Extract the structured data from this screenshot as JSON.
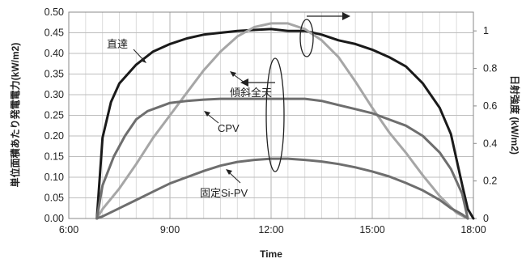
{
  "chart_data": {
    "type": "line",
    "title": "",
    "xlabel": "Time",
    "ylabel_left": "単位面積あたり発電電力(kW/m2)",
    "ylabel_right": "日射強度 (kW/m2)",
    "x_ticks": [
      "6:00",
      "9:00",
      "12:00",
      "15:00",
      "18:00"
    ],
    "xlim": [
      "6:00",
      "18:00"
    ],
    "ylim_left": [
      0,
      0.5
    ],
    "ylim_right": [
      0,
      1.1
    ],
    "y_ticks_left": [
      "0.00",
      "0.05",
      "0.10",
      "0.15",
      "0.20",
      "0.25",
      "0.30",
      "0.35",
      "0.40",
      "0.45",
      "0.50"
    ],
    "y_ticks_right": [
      "0",
      "0.2",
      "0.4",
      "0.6",
      "0.8",
      "1"
    ],
    "grid": true,
    "legend": "none",
    "series": [
      {
        "name": "直達",
        "axis": "right",
        "color": "#1a1a1a",
        "x": [
          "6:50",
          "7:00",
          "7:15",
          "7:30",
          "8:00",
          "8:30",
          "9:00",
          "9:30",
          "10:00",
          "10:30",
          "11:00",
          "11:30",
          "12:00",
          "12:30",
          "13:00",
          "13:30",
          "14:00",
          "14:30",
          "15:00",
          "15:30",
          "16:00",
          "16:30",
          "17:00",
          "17:20",
          "17:40",
          "17:50",
          "18:00"
        ],
        "values": [
          0,
          0.43,
          0.62,
          0.72,
          0.82,
          0.89,
          0.93,
          0.96,
          0.98,
          0.99,
          1.0,
          1.005,
          1.01,
          1.0,
          1.0,
          0.98,
          0.95,
          0.93,
          0.9,
          0.86,
          0.81,
          0.72,
          0.59,
          0.45,
          0.18,
          0.05,
          0
        ]
      },
      {
        "name": "傾斜全天",
        "axis": "right",
        "color": "#a6a6a6",
        "x": [
          "6:50",
          "7:00",
          "7:30",
          "8:00",
          "8:30",
          "9:00",
          "9:30",
          "10:00",
          "10:30",
          "11:00",
          "11:30",
          "12:00",
          "12:30",
          "13:00",
          "13:30",
          "14:00",
          "14:30",
          "15:00",
          "15:30",
          "16:00",
          "16:30",
          "17:00",
          "17:30",
          "17:50"
        ],
        "values": [
          0,
          0.05,
          0.16,
          0.29,
          0.43,
          0.55,
          0.67,
          0.79,
          0.89,
          0.97,
          1.02,
          1.04,
          1.04,
          1.01,
          0.95,
          0.86,
          0.73,
          0.59,
          0.46,
          0.35,
          0.23,
          0.12,
          0.03,
          0
        ]
      },
      {
        "name": "CPV",
        "axis": "left",
        "color": "#6e6e6e",
        "x": [
          "6:50",
          "7:00",
          "7:20",
          "7:40",
          "8:00",
          "8:20",
          "8:40",
          "9:00",
          "9:30",
          "10:00",
          "10:30",
          "11:00",
          "11:30",
          "12:00",
          "12:30",
          "13:00",
          "13:30",
          "14:00",
          "14:30",
          "15:00",
          "15:30",
          "16:00",
          "16:30",
          "17:00",
          "17:20",
          "17:40",
          "17:50"
        ],
        "values": [
          0,
          0.08,
          0.15,
          0.2,
          0.24,
          0.26,
          0.27,
          0.28,
          0.285,
          0.288,
          0.29,
          0.29,
          0.29,
          0.29,
          0.29,
          0.29,
          0.285,
          0.275,
          0.265,
          0.255,
          0.24,
          0.225,
          0.2,
          0.16,
          0.12,
          0.06,
          0
        ]
      },
      {
        "name": "固定Si-PV",
        "axis": "left",
        "color": "#6e6e6e",
        "x": [
          "6:50",
          "7:00",
          "7:30",
          "8:00",
          "8:30",
          "9:00",
          "9:30",
          "10:00",
          "10:30",
          "11:00",
          "11:30",
          "12:00",
          "12:30",
          "13:00",
          "13:30",
          "14:00",
          "14:30",
          "15:00",
          "15:30",
          "16:00",
          "16:30",
          "17:00",
          "17:20",
          "17:40",
          "17:50"
        ],
        "values": [
          0,
          0.005,
          0.025,
          0.045,
          0.065,
          0.085,
          0.1,
          0.115,
          0.128,
          0.137,
          0.142,
          0.145,
          0.145,
          0.142,
          0.138,
          0.132,
          0.124,
          0.114,
          0.102,
          0.086,
          0.068,
          0.045,
          0.025,
          0.01,
          0
        ]
      }
    ],
    "annotations": [
      {
        "label": "直達",
        "points_to": "直達"
      },
      {
        "label": "傾斜全天",
        "points_to": "傾斜全天"
      },
      {
        "label": "CPV",
        "points_to": "CPV"
      },
      {
        "label": "固定Si-PV",
        "points_to": "固定Si-PV"
      }
    ]
  }
}
